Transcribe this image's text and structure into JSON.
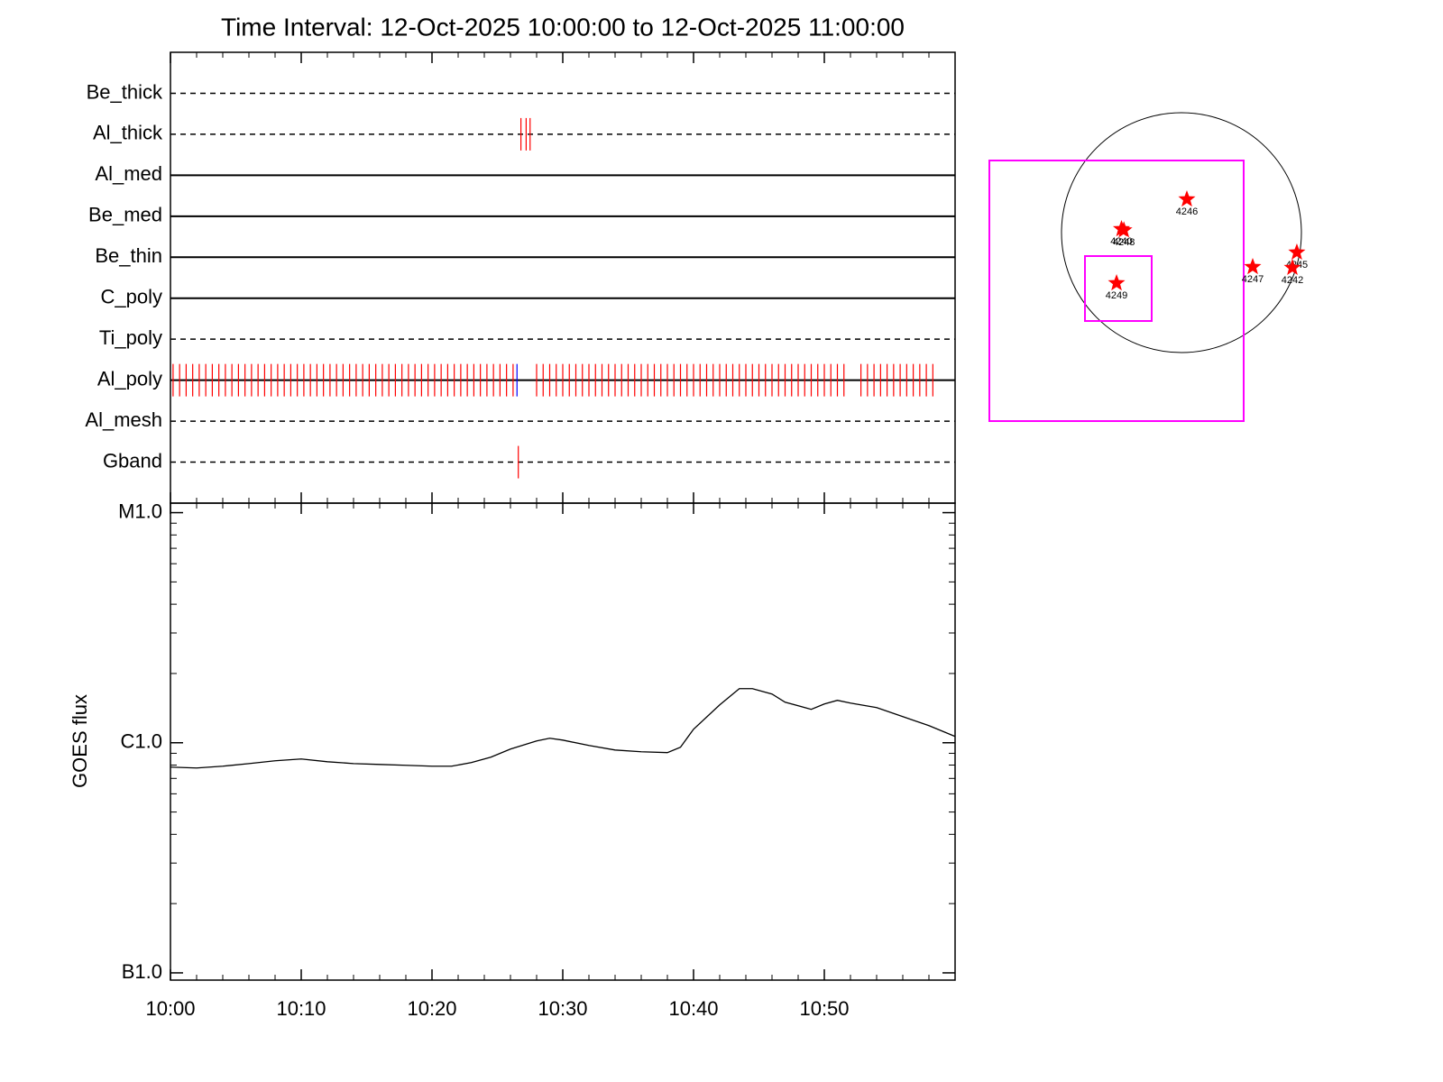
{
  "chart_data": [
    {
      "type": "timeline",
      "title": "Time Interval: 12-Oct-2025 10:00:00 to 12-Oct-2025 11:00:00",
      "categories": [
        "Be_thick",
        "Al_thick",
        "Al_med",
        "Be_med",
        "Be_thin",
        "C_poly",
        "Ti_poly",
        "Al_poly",
        "Al_mesh",
        "Gband"
      ],
      "line_styles": [
        "dashed",
        "dashed",
        "solid",
        "solid",
        "solid",
        "solid",
        "dashed",
        "solid",
        "dashed",
        "dashed"
      ],
      "xlim": [
        0,
        60
      ],
      "series": [
        {
          "color": "#ff0000",
          "values": [
            [],
            [
              26.8,
              27.2,
              27.5
            ],
            [],
            [],
            [],
            [],
            [],
            [
              0.2,
              0.7,
              1.2,
              1.7,
              2.2,
              2.7,
              3.2,
              3.7,
              4.2,
              4.7,
              5.2,
              5.7,
              6.2,
              6.7,
              7.2,
              7.7,
              8.2,
              8.7,
              9.2,
              9.7,
              10.2,
              10.7,
              11.2,
              11.7,
              12.2,
              12.7,
              13.2,
              13.7,
              14.2,
              14.7,
              15.2,
              15.7,
              16.2,
              16.7,
              17.2,
              17.7,
              18.2,
              18.7,
              19.2,
              19.7,
              20.2,
              20.7,
              21.2,
              21.7,
              22.2,
              22.7,
              23.2,
              23.7,
              24.2,
              24.7,
              25.2,
              25.7,
              26.2,
              28.0,
              28.5,
              29.0,
              29.5,
              30.0,
              30.5,
              31.0,
              31.5,
              32.0,
              32.5,
              33.0,
              33.5,
              34.0,
              34.5,
              35.0,
              35.5,
              36.0,
              36.5,
              37.0,
              37.5,
              38.0,
              38.5,
              39.0,
              39.5,
              40.0,
              40.5,
              41.0,
              41.5,
              42.0,
              42.5,
              43.0,
              43.5,
              44.0,
              44.5,
              45.0,
              45.5,
              46.0,
              46.5,
              47.0,
              47.5,
              48.0,
              48.5,
              49.0,
              49.5,
              50.0,
              50.5,
              51.0,
              51.5,
              52.8,
              53.3,
              53.8,
              54.3,
              54.8,
              55.3,
              55.8,
              56.3,
              56.8,
              57.3,
              57.8,
              58.3
            ],
            [],
            [
              26.6
            ]
          ]
        },
        {
          "color": "#0000ff",
          "values": [
            [],
            [],
            [],
            [],
            [],
            [],
            [],
            [
              26.5
            ],
            [],
            []
          ]
        }
      ]
    },
    {
      "type": "line",
      "ylabel": "GOES flux",
      "log_scale": true,
      "xlim": [
        0,
        60
      ],
      "xticks": [
        {
          "value": 0,
          "label": "10:00"
        },
        {
          "value": 10,
          "label": "10:10"
        },
        {
          "value": 20,
          "label": "10:20"
        },
        {
          "value": 30,
          "label": "10:30"
        },
        {
          "value": 40,
          "label": "10:40"
        },
        {
          "value": 50,
          "label": "10:50"
        }
      ],
      "ylim": [
        9.3e-08,
        1.1e-05
      ],
      "yticks": [
        {
          "value": 1e-05,
          "label": "M1.0"
        },
        {
          "value": 1e-06,
          "label": "C1.0"
        },
        {
          "value": 1e-07,
          "label": "B1.0"
        }
      ],
      "x": [
        0,
        2,
        4,
        6,
        8,
        10,
        12,
        14,
        16,
        18,
        20,
        21.5,
        23,
        24.5,
        26,
        28,
        29,
        30,
        32,
        34,
        36,
        38,
        39,
        40,
        42,
        43.5,
        44.5,
        46,
        47,
        49,
        50,
        51,
        52,
        54,
        56,
        58,
        60
      ],
      "series": [
        {
          "color": "#000000",
          "values": [
            7.84e-07,
            7.77e-07,
            7.91e-07,
            8.12e-07,
            8.35e-07,
            8.5e-07,
            8.27e-07,
            8.12e-07,
            8.05e-07,
            7.98e-07,
            7.91e-07,
            7.91e-07,
            8.2e-07,
            8.66e-07,
            9.39e-07,
            1.018e-06,
            1.046e-06,
            1.027e-06,
            9.73e-07,
            9.3e-07,
            9.14e-07,
            9.06e-07,
            9.56e-07,
            1.145e-06,
            1.461e-06,
            1.719e-06,
            1.719e-06,
            1.628e-06,
            1.501e-06,
            1.397e-06,
            1.474e-06,
            1.529e-06,
            1.488e-06,
            1.422e-06,
            1.299e-06,
            1.187e-06,
            1.065e-06
          ]
        }
      ]
    },
    {
      "type": "map",
      "color": "#ff0000",
      "labels": [
        "4246",
        "4240",
        "4248",
        "4249",
        "4247",
        "4245",
        "4242"
      ],
      "x": [
        0.045,
        -0.5,
        -0.48,
        -0.541,
        0.594,
        0.962,
        0.925
      ],
      "y": [
        0.278,
        0.03,
        0.02,
        -0.421,
        -0.286,
        -0.165,
        -0.293
      ]
    }
  ]
}
